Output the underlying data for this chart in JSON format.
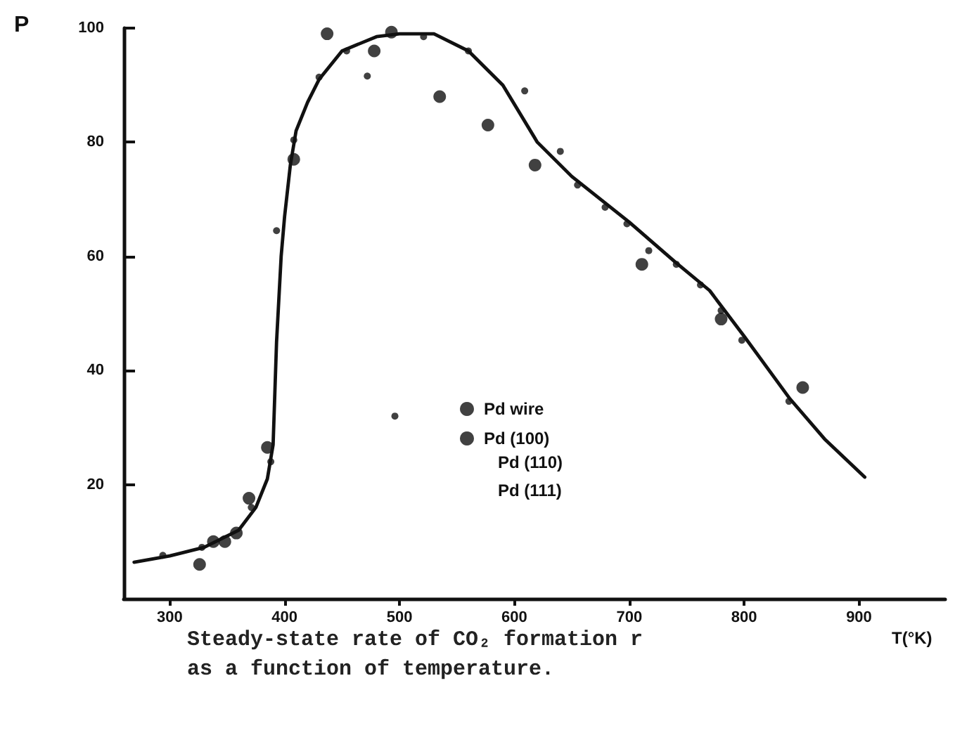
{
  "chart_data": {
    "type": "scatter",
    "title": "Steady-state rate of CO₂ formation r as a function of temperature.",
    "ylabel": "P",
    "xlabel": "T(°K)",
    "xlim": [
      260,
      975
    ],
    "xticks": [
      300,
      400,
      500,
      600,
      700,
      800,
      900
    ],
    "ylim": [
      0,
      100
    ],
    "yticks": [
      20,
      40,
      60,
      80,
      100
    ],
    "grid": false,
    "legend": "center",
    "annotations": [
      "Pd (110)",
      "Pd (111)"
    ],
    "series": [
      {
        "type": "line",
        "color": "#111111",
        "marker": "none",
        "line_style": "solid",
        "x": [
          269,
          300,
          330,
          360,
          375,
          385,
          390,
          393,
          397,
          400,
          405,
          410,
          420,
          430,
          450,
          480,
          500,
          530,
          560,
          590,
          620,
          650,
          700,
          740,
          770,
          800,
          840,
          870,
          905
        ],
        "values": [
          6.4,
          7.5,
          9,
          12,
          16,
          21,
          27,
          45,
          60,
          67,
          76,
          82,
          87,
          91,
          96,
          98.5,
          99,
          99,
          96,
          90,
          80,
          74,
          66,
          59,
          54,
          46,
          35,
          28,
          21.3
        ]
      },
      {
        "name": "Pd wire",
        "color": "#111111",
        "marker": "circle",
        "x": [
          294,
          328,
          371,
          388,
          393,
          408,
          430,
          454,
          472,
          496,
          521,
          560,
          609,
          640,
          655,
          679,
          698,
          717,
          741,
          762,
          780,
          798,
          839
        ],
        "values": [
          7.6,
          9,
          16,
          24,
          64.5,
          80.4,
          91.4,
          96,
          91.6,
          32,
          98.5,
          96,
          89,
          78.4,
          72.5,
          68.6,
          65.7,
          61,
          58.6,
          55,
          50.5,
          45.3,
          34.6
        ]
      },
      {
        "name": "Pd (100)",
        "color": "#111111",
        "marker": "circle",
        "x": [
          326,
          338,
          348,
          358,
          369,
          385,
          408,
          437,
          478,
          493,
          535,
          577,
          618,
          711,
          780,
          851
        ],
        "values": [
          6,
          10,
          10,
          11.5,
          17.6,
          26.5,
          77,
          99,
          96,
          99.3,
          88,
          83,
          76,
          58.6,
          49,
          37
        ]
      }
    ]
  }
}
